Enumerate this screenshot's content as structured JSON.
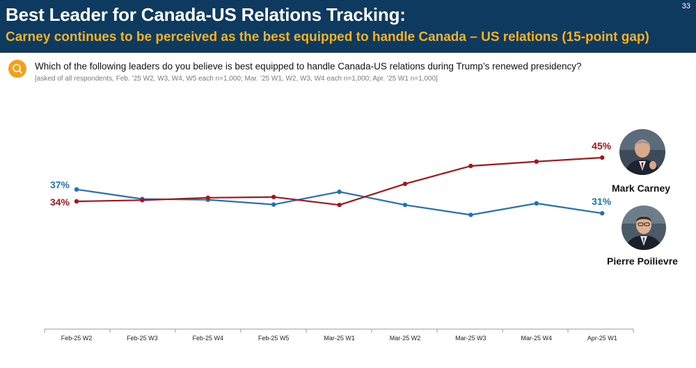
{
  "header": {
    "title": "Best Leader for Canada-US Relations Tracking:",
    "subtitle": "Carney continues to be perceived as the best equipped to handle Canada – US relations (15-point gap)",
    "page_number": "33"
  },
  "question": {
    "text": "Which of the following leaders do you believe is best equipped to handle Canada-US relations during Trump’s renewed presidency?",
    "note": "[asked of all respondents, Feb. ’25 W2, W3, W4, W5 each  n=1,000; Mar. ’25 W1, W2, W3, W4 each  n=1,000; Apr. ’25 W1 n=1,000]",
    "icon": "search-icon"
  },
  "legend": {
    "carney": "Mark Carney",
    "poilievre": "Pierre Poilievre"
  },
  "chart_data": {
    "type": "line",
    "categories": [
      "Feb-25 W2",
      "Feb-25 W3",
      "Feb-25 W4",
      "Feb-25 W5",
      "Mar-25 W1",
      "Mar-25 W2",
      "Mar-25 W3",
      "Mar-25 W4",
      "Apr-25 W1"
    ],
    "series": [
      {
        "name": "Mark Carney",
        "color": "#b01116",
        "values": [
          34,
          34.3,
          34.9,
          35.1,
          33.1,
          38.4,
          42.9,
          44.0,
          45
        ],
        "labels": [
          {
            "index": 0,
            "text": "34%"
          },
          {
            "index": 8,
            "text": "45%"
          }
        ]
      },
      {
        "name": "Pierre Poilievre",
        "color": "#1f72b8",
        "values": [
          37,
          34.6,
          34.4,
          33.2,
          36.4,
          33.1,
          30.6,
          33.5,
          31
        ],
        "labels": [
          {
            "index": 0,
            "text": "37%"
          },
          {
            "index": 8,
            "text": "31%"
          }
        ]
      }
    ],
    "ylim": [
      0,
      100
    ],
    "title": "",
    "xlabel": "",
    "ylabel": "",
    "grid": false
  }
}
